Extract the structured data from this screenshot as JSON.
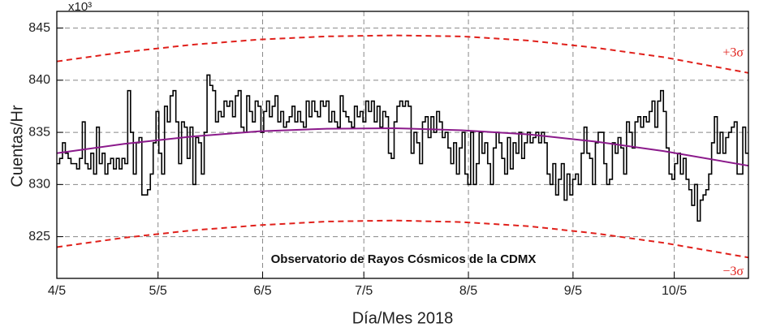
{
  "chart_data": {
    "type": "line",
    "y_label": "Cuentas/Hr",
    "x_label": "Día/Mes 2018",
    "y_multiplier": "x10³",
    "annotation": "Observatorio de Rayos Cósmicos de la CDMX",
    "xlim": [
      0,
      205
    ],
    "ylim": [
      821,
      846.6
    ],
    "xticks": [
      {
        "value": 0,
        "label": "4/5"
      },
      {
        "value": 30,
        "label": "5/5"
      },
      {
        "value": 61,
        "label": "6/5"
      },
      {
        "value": 91,
        "label": "7/5"
      },
      {
        "value": 122,
        "label": "8/5"
      },
      {
        "value": 153,
        "label": "9/5"
      },
      {
        "value": 183,
        "label": "10/5"
      }
    ],
    "yticks": [
      825,
      830,
      835,
      840,
      845
    ],
    "grid": true,
    "x": [
      0,
      20,
      40,
      60,
      80,
      100,
      120,
      140,
      160,
      180,
      205
    ],
    "series": [
      {
        "color": "#8b1a8b",
        "values": [
          833,
          833.9,
          834.6,
          835.1,
          835.35,
          835.4,
          835.2,
          834.8,
          834.1,
          833.2,
          831.8
        ]
      },
      {
        "name": "+3σ",
        "color": "#e0201b",
        "values": [
          841.8,
          842.7,
          843.4,
          843.9,
          844.2,
          844.3,
          844.2,
          843.8,
          843.1,
          842.2,
          840.7
        ]
      },
      {
        "name": "−3σ",
        "color": "#e0201b",
        "values": [
          824,
          824.9,
          825.6,
          826.1,
          826.45,
          826.55,
          826.4,
          826,
          825.3,
          824.4,
          823
        ]
      }
    ],
    "histogram": {
      "color": "#000000",
      "values": [
        832,
        832.5,
        834,
        833,
        832.5,
        832,
        832,
        831.5,
        832.5,
        836,
        832,
        831.5,
        833,
        831,
        835.5,
        832,
        833,
        831,
        832,
        832.5,
        831.5,
        832.5,
        831.5,
        832.5,
        832,
        839,
        835,
        831,
        834,
        834.5,
        829,
        829,
        829.5,
        831,
        834,
        837,
        833,
        831,
        837.5,
        836,
        838.5,
        839,
        836,
        832,
        836,
        835.5,
        832.5,
        835.5,
        830,
        834.5,
        834,
        831,
        835,
        840.5,
        839.5,
        839,
        836,
        837,
        836.5,
        838,
        837.5,
        838,
        836.5,
        838.5,
        839,
        835.5,
        835,
        838.5,
        837,
        836,
        838,
        837.5,
        835,
        837,
        838,
        836.5,
        837.5,
        838.5,
        836,
        837,
        835.5,
        836,
        836.5,
        837.5,
        836,
        837,
        836,
        835.5,
        838,
        836.5,
        838,
        837,
        836.5,
        838,
        837.5,
        838,
        836,
        837,
        836,
        835.5,
        838.5,
        837,
        836.5,
        836,
        835.5,
        837.5,
        836.5,
        837,
        836,
        838,
        837,
        838,
        836,
        837.5,
        835.5,
        837,
        836.5,
        833,
        832.5,
        836,
        837.5,
        838,
        837.5,
        838,
        837.5,
        833,
        835,
        834,
        832,
        836,
        836.5,
        834.5,
        836.5,
        835,
        837,
        836,
        834.5,
        835,
        833.5,
        832,
        834,
        831,
        833.5,
        835,
        831,
        830,
        835,
        830,
        832,
        835,
        833,
        834,
        832,
        830,
        833.5,
        835,
        834,
        832.5,
        831,
        834.5,
        831.5,
        834,
        833,
        835,
        832.5,
        834,
        835,
        834,
        834.5,
        835,
        834,
        835,
        834,
        831,
        830,
        832,
        829,
        830.5,
        832,
        828.5,
        831,
        829,
        830.5,
        831,
        830,
        833,
        835.5,
        833,
        832.5,
        830,
        834,
        835,
        835,
        832,
        830,
        830.5,
        834,
        833,
        834.5,
        833.5,
        831,
        836,
        835,
        833.5,
        836,
        836.5,
        835.5,
        836.5,
        836,
        837,
        838,
        835.5,
        838,
        839,
        837,
        833.5,
        831,
        830.5,
        832,
        833,
        831,
        832.5,
        830.5,
        829.5,
        828,
        830,
        826.5,
        828.5,
        829,
        829.5,
        831,
        834,
        836.5,
        833,
        835,
        833,
        834.5,
        835,
        835.5,
        836,
        831,
        831,
        835.5,
        833
      ]
    }
  }
}
